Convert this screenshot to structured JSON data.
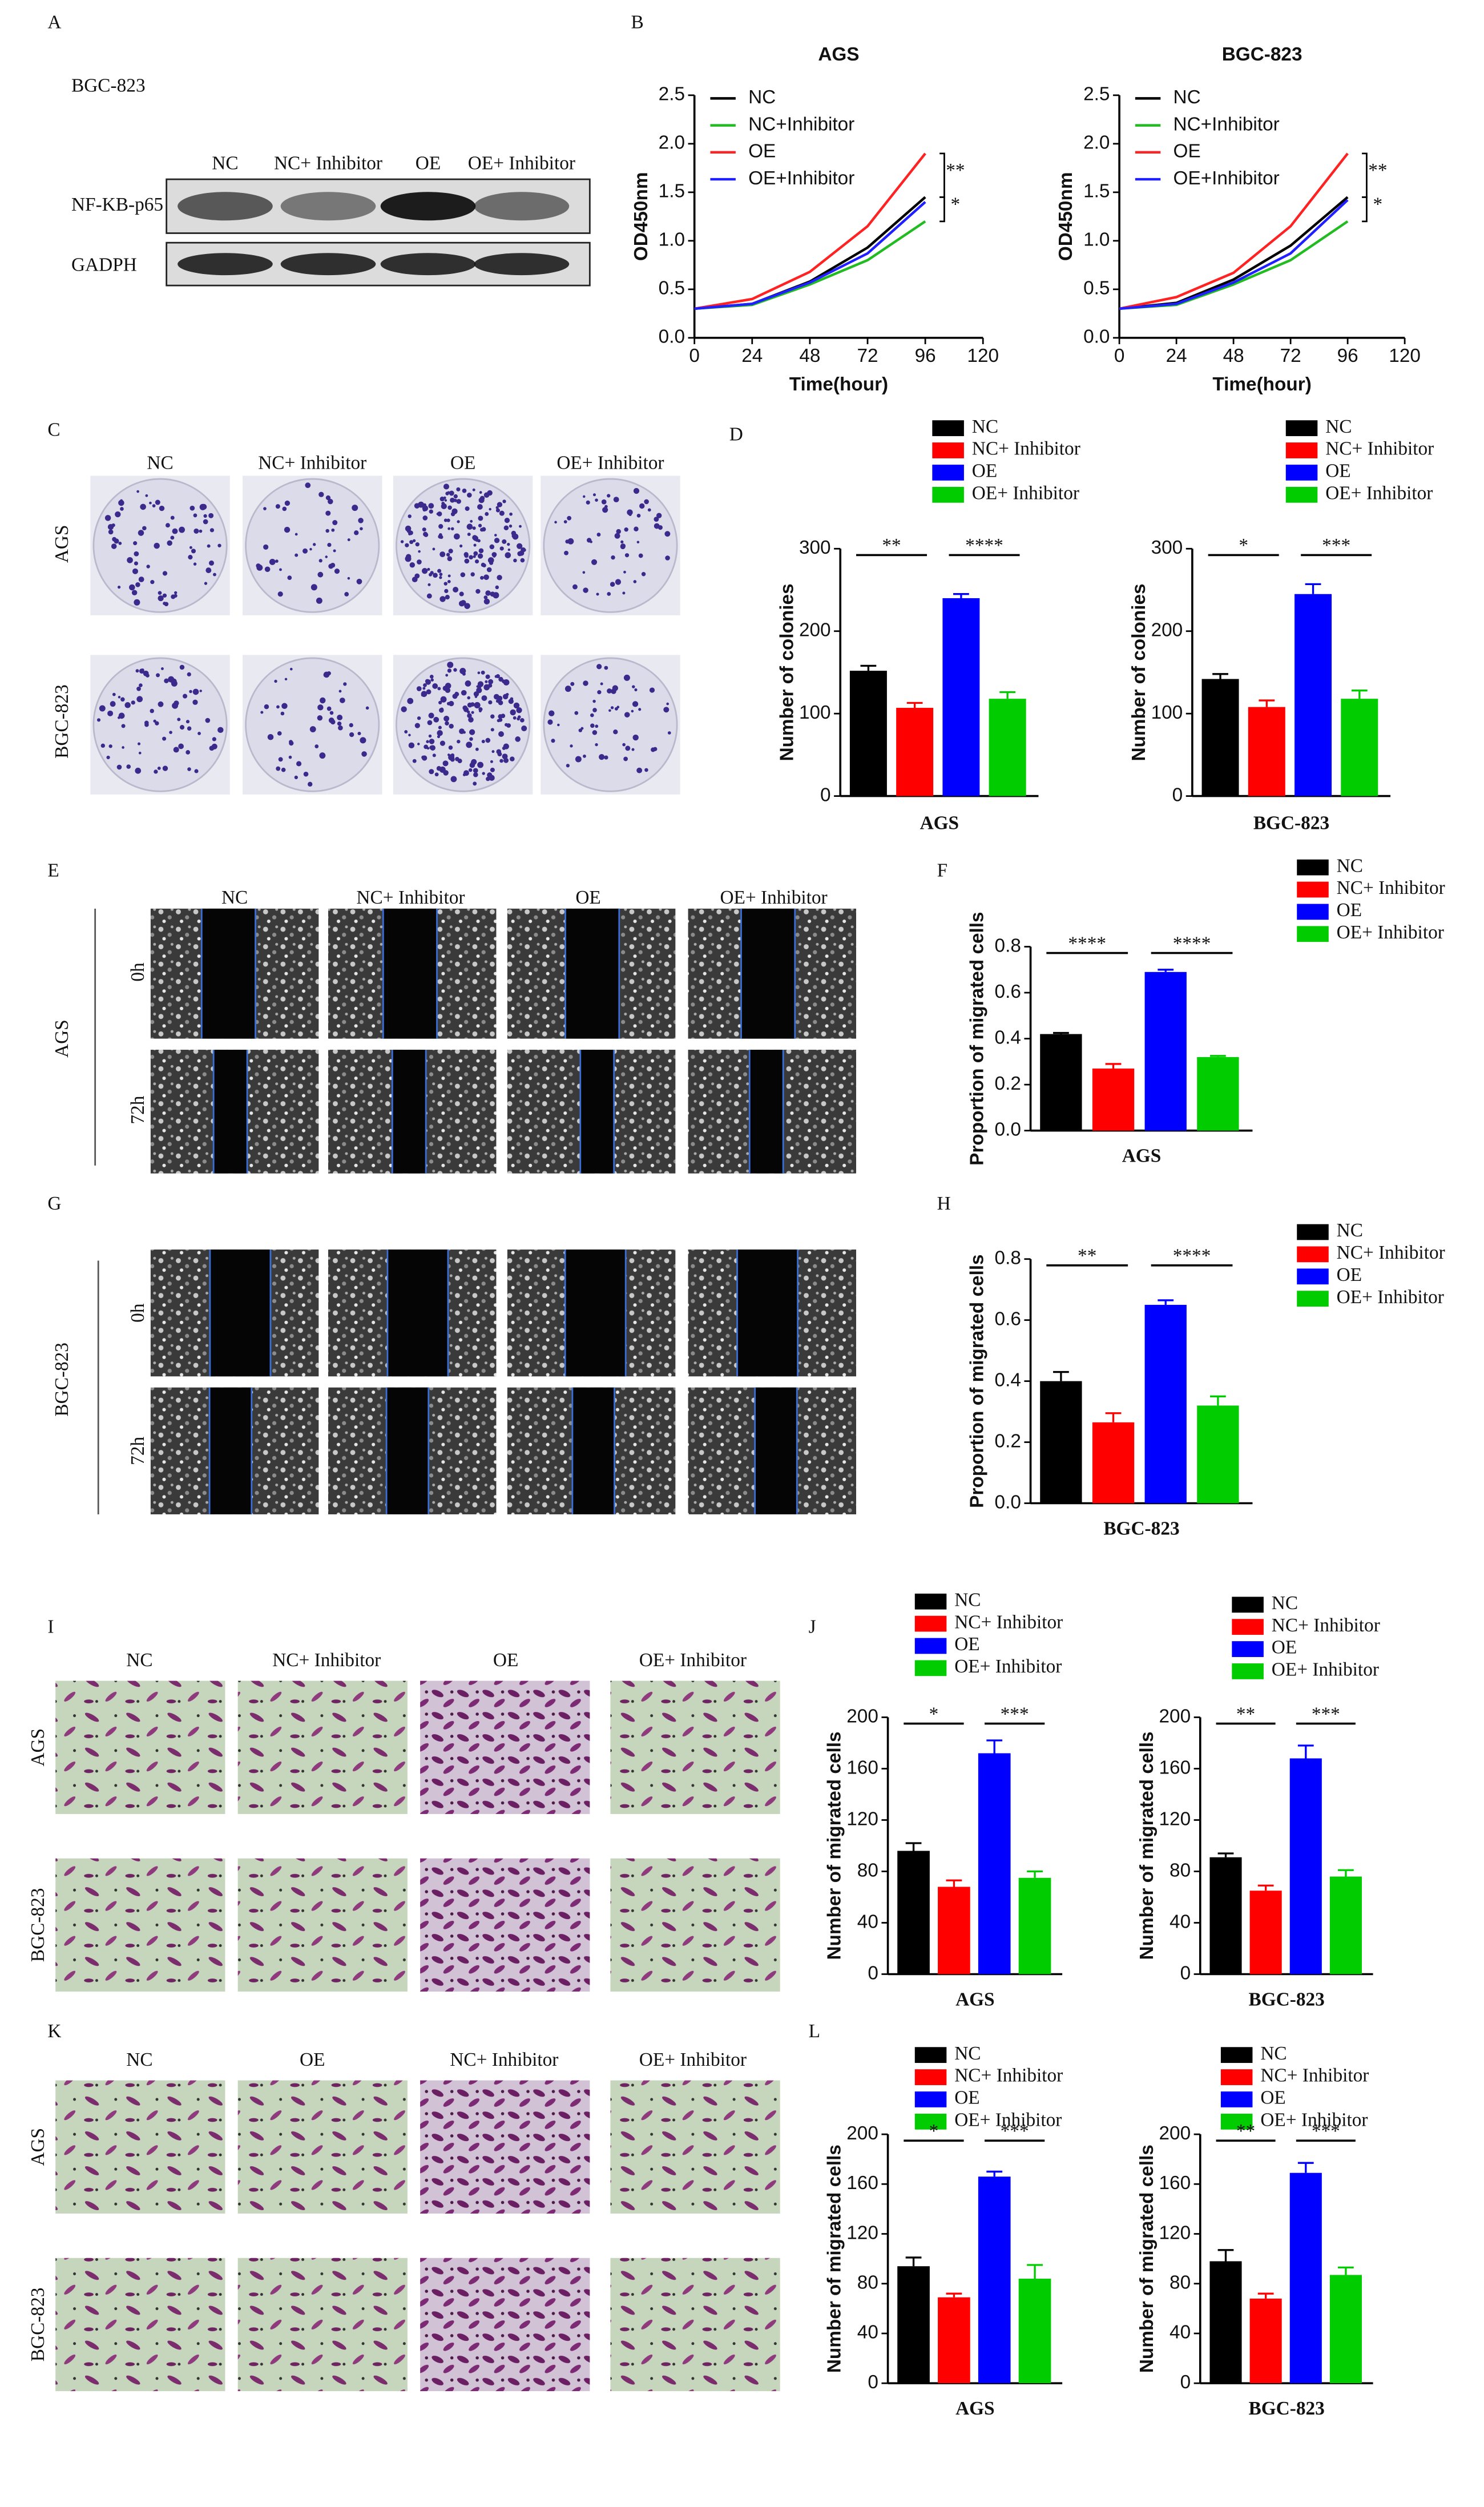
{
  "figure": {
    "A": {
      "letter": "A",
      "cell_line": "BGC-823",
      "columns": [
        "NC",
        "NC+ Inhibitor",
        "OE",
        "OE+ Inhibitor"
      ],
      "rows": [
        "NF-KB-p65",
        "GADPH"
      ]
    },
    "B": {
      "letter": "B"
    },
    "C": {
      "letter": "C",
      "columns": [
        "NC",
        "NC+ Inhibitor",
        "OE",
        "OE+ Inhibitor"
      ],
      "rows": [
        "AGS",
        "BGC-823"
      ]
    },
    "D": {
      "letter": "D"
    },
    "E": {
      "letter": "E",
      "columns": [
        "NC",
        "NC+ Inhibitor",
        "OE",
        "OE+ Inhibitor"
      ],
      "times": [
        "0h",
        "72h"
      ],
      "cell_line": "AGS"
    },
    "F": {
      "letter": "F"
    },
    "G": {
      "letter": "G",
      "times": [
        "0h",
        "72h"
      ],
      "cell_line": "BGC-823"
    },
    "H": {
      "letter": "H"
    },
    "I": {
      "letter": "I",
      "columns": [
        "NC",
        "NC+ Inhibitor",
        "OE",
        "OE+ Inhibitor"
      ],
      "rows": [
        "AGS",
        "BGC-823"
      ]
    },
    "J": {
      "letter": "J"
    },
    "K": {
      "letter": "K",
      "columns": [
        "NC",
        "OE",
        "NC+ Inhibitor",
        "OE+ Inhibitor"
      ],
      "rows": [
        "AGS",
        "BGC-823"
      ]
    },
    "L": {
      "letter": "L"
    }
  },
  "chart_data": [
    {
      "type": "line",
      "title": "AGS",
      "xlabel": "Time(hour)",
      "ylabel": "OD450nm",
      "x": [
        0,
        24,
        48,
        72,
        96
      ],
      "xlim": [
        0,
        120
      ],
      "xticks": [
        0,
        24,
        48,
        72,
        96,
        120
      ],
      "ylim": [
        0,
        2.5
      ],
      "yticks": [
        {
          "value": 0,
          "label": "0.0"
        },
        0.5,
        {
          "value": 1,
          "label": "1.0"
        },
        1.5,
        {
          "value": 2,
          "label": "2.0"
        },
        2.5
      ],
      "series": [
        {
          "name": "NC",
          "color": "#000000",
          "values": [
            0.3,
            0.35,
            0.58,
            0.93,
            1.45
          ]
        },
        {
          "name": "NC+Inhibitor",
          "color": "#22bb22",
          "values": [
            0.3,
            0.34,
            0.55,
            0.8,
            1.2
          ]
        },
        {
          "name": "OE",
          "color": "#ff2222",
          "values": [
            0.3,
            0.4,
            0.68,
            1.15,
            1.9
          ]
        },
        {
          "name": "OE+Inhibitor",
          "color": "#1f1fff",
          "values": [
            0.3,
            0.35,
            0.57,
            0.87,
            1.4
          ]
        }
      ],
      "annotations": [
        "**",
        "*"
      ]
    },
    {
      "type": "line",
      "title": "BGC-823",
      "xlabel": "Time(hour)",
      "ylabel": "OD450nm",
      "x": [
        0,
        24,
        48,
        72,
        96
      ],
      "xlim": [
        0,
        120
      ],
      "xticks": [
        0,
        24,
        48,
        72,
        96,
        120
      ],
      "ylim": [
        0,
        2.5
      ],
      "yticks": [
        {
          "value": 0,
          "label": "0.0"
        },
        0.5,
        {
          "value": 1,
          "label": "1.0"
        },
        1.5,
        {
          "value": 2,
          "label": "2.0"
        },
        2.5
      ],
      "series": [
        {
          "name": "NC",
          "color": "#000000",
          "values": [
            0.3,
            0.36,
            0.6,
            0.95,
            1.45
          ]
        },
        {
          "name": "NC+Inhibitor",
          "color": "#22bb22",
          "values": [
            0.3,
            0.34,
            0.55,
            0.8,
            1.2
          ]
        },
        {
          "name": "OE",
          "color": "#ff2222",
          "values": [
            0.3,
            0.42,
            0.67,
            1.15,
            1.9
          ]
        },
        {
          "name": "OE+Inhibitor",
          "color": "#1f1fff",
          "values": [
            0.3,
            0.35,
            0.57,
            0.87,
            1.42
          ]
        }
      ],
      "annotations": [
        "**",
        "*"
      ]
    },
    {
      "type": "bar",
      "xlabel": "AGS",
      "ylabel": "Number of colonies",
      "ylim": [
        0,
        300
      ],
      "yticks": [
        0,
        100,
        200,
        300
      ],
      "series": [
        {
          "name": "NC",
          "color": "#000000",
          "values": [
            152
          ],
          "errors": [
            6
          ]
        },
        {
          "name": "NC+ Inhibitor",
          "color": "#ff0000",
          "values": [
            107
          ],
          "errors": [
            6
          ]
        },
        {
          "name": "OE",
          "color": "#0000ff",
          "values": [
            240
          ],
          "errors": [
            5
          ]
        },
        {
          "name": "OE+ Inhibitor",
          "color": "#00cc00",
          "values": [
            118
          ],
          "errors": [
            8
          ]
        }
      ],
      "annotations": [
        "**",
        "****"
      ]
    },
    {
      "type": "bar",
      "xlabel": "BGC-823",
      "ylabel": "Number of colonies",
      "ylim": [
        0,
        300
      ],
      "yticks": [
        0,
        100,
        200,
        300
      ],
      "series": [
        {
          "name": "NC",
          "color": "#000000",
          "values": [
            142
          ],
          "errors": [
            6
          ]
        },
        {
          "name": "NC+ Inhibitor",
          "color": "#ff0000",
          "values": [
            108
          ],
          "errors": [
            8
          ]
        },
        {
          "name": "OE",
          "color": "#0000ff",
          "values": [
            245
          ],
          "errors": [
            12
          ]
        },
        {
          "name": "OE+ Inhibitor",
          "color": "#00cc00",
          "values": [
            118
          ],
          "errors": [
            10
          ]
        }
      ],
      "annotations": [
        "*",
        "***"
      ]
    },
    {
      "type": "bar",
      "xlabel": "AGS",
      "ylabel": "Proportion of migrated cells",
      "ylim": [
        0,
        0.8
      ],
      "yticks": [
        {
          "value": 0,
          "label": "0.0"
        },
        0.2,
        0.4,
        0.6,
        0.8
      ],
      "series": [
        {
          "name": "NC",
          "color": "#000000",
          "values": [
            0.42
          ],
          "errors": [
            0.005
          ]
        },
        {
          "name": "NC+ Inhibitor",
          "color": "#ff0000",
          "values": [
            0.27
          ],
          "errors": [
            0.02
          ]
        },
        {
          "name": "OE",
          "color": "#0000ff",
          "values": [
            0.69
          ],
          "errors": [
            0.01
          ]
        },
        {
          "name": "OE+ Inhibitor",
          "color": "#00cc00",
          "values": [
            0.32
          ],
          "errors": [
            0.005
          ]
        }
      ],
      "annotations": [
        "****",
        "****"
      ]
    },
    {
      "type": "bar",
      "xlabel": "BGC-823",
      "ylabel": "Proportion of migrated cells",
      "ylim": [
        0,
        0.8
      ],
      "yticks": [
        {
          "value": 0,
          "label": "0.0"
        },
        0.2,
        0.4,
        0.6,
        0.8
      ],
      "series": [
        {
          "name": "NC",
          "color": "#000000",
          "values": [
            0.4
          ],
          "errors": [
            0.03
          ]
        },
        {
          "name": "NC+ Inhibitor",
          "color": "#ff0000",
          "values": [
            0.265
          ],
          "errors": [
            0.03
          ]
        },
        {
          "name": "OE",
          "color": "#0000ff",
          "values": [
            0.65
          ],
          "errors": [
            0.015
          ]
        },
        {
          "name": "OE+ Inhibitor",
          "color": "#00cc00",
          "values": [
            0.32
          ],
          "errors": [
            0.03
          ]
        }
      ],
      "annotations": [
        "**",
        "****"
      ]
    },
    {
      "type": "bar",
      "xlabel": "AGS",
      "ylabel": "Number of migrated cells",
      "ylim": [
        0,
        200
      ],
      "yticks": [
        0,
        40,
        80,
        120,
        160,
        200
      ],
      "series": [
        {
          "name": "NC",
          "color": "#000000",
          "values": [
            96
          ],
          "errors": [
            6
          ]
        },
        {
          "name": "NC+ Inhibitor",
          "color": "#ff0000",
          "values": [
            68
          ],
          "errors": [
            5
          ]
        },
        {
          "name": "OE",
          "color": "#0000ff",
          "values": [
            172
          ],
          "errors": [
            10
          ]
        },
        {
          "name": "OE+ Inhibitor",
          "color": "#00cc00",
          "values": [
            75
          ],
          "errors": [
            5
          ]
        }
      ],
      "annotations": [
        "*",
        "***"
      ]
    },
    {
      "type": "bar",
      "xlabel": "BGC-823",
      "ylabel": "Number of migrated cells",
      "ylim": [
        0,
        200
      ],
      "yticks": [
        0,
        40,
        80,
        120,
        160,
        200
      ],
      "series": [
        {
          "name": "NC",
          "color": "#000000",
          "values": [
            91
          ],
          "errors": [
            3
          ]
        },
        {
          "name": "NC+ Inhibitor",
          "color": "#ff0000",
          "values": [
            65
          ],
          "errors": [
            4
          ]
        },
        {
          "name": "OE",
          "color": "#0000ff",
          "values": [
            168
          ],
          "errors": [
            10
          ]
        },
        {
          "name": "OE+ Inhibitor",
          "color": "#00cc00",
          "values": [
            76
          ],
          "errors": [
            5
          ]
        }
      ],
      "annotations": [
        "**",
        "***"
      ]
    },
    {
      "type": "bar",
      "xlabel": "AGS",
      "ylabel": "Number of migrated cells",
      "ylim": [
        0,
        200
      ],
      "yticks": [
        0,
        40,
        80,
        120,
        160,
        200
      ],
      "series": [
        {
          "name": "NC",
          "color": "#000000",
          "values": [
            94
          ],
          "errors": [
            7
          ]
        },
        {
          "name": "NC+ Inhibitor",
          "color": "#ff0000",
          "values": [
            69
          ],
          "errors": [
            3
          ]
        },
        {
          "name": "OE",
          "color": "#0000ff",
          "values": [
            166
          ],
          "errors": [
            4
          ]
        },
        {
          "name": "OE+ Inhibitor",
          "color": "#00cc00",
          "values": [
            84
          ],
          "errors": [
            11
          ]
        }
      ],
      "annotations": [
        "*",
        "***"
      ]
    },
    {
      "type": "bar",
      "xlabel": "BGC-823",
      "ylabel": "Number of migrated cells",
      "ylim": [
        0,
        200
      ],
      "yticks": [
        0,
        40,
        80,
        120,
        160,
        200
      ],
      "series": [
        {
          "name": "NC",
          "color": "#000000",
          "values": [
            98
          ],
          "errors": [
            9
          ]
        },
        {
          "name": "NC+ Inhibitor",
          "color": "#ff0000",
          "values": [
            68
          ],
          "errors": [
            4
          ]
        },
        {
          "name": "OE",
          "color": "#0000ff",
          "values": [
            169
          ],
          "errors": [
            8
          ]
        },
        {
          "name": "OE+ Inhibitor",
          "color": "#00cc00",
          "values": [
            87
          ],
          "errors": [
            6
          ]
        }
      ],
      "annotations": [
        "**",
        "***"
      ]
    }
  ]
}
